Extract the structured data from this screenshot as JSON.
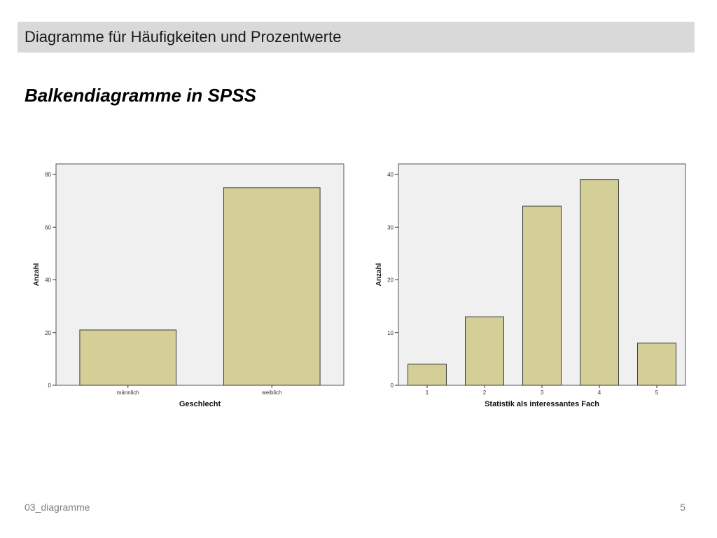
{
  "header": {
    "title": "Diagramme für Häufigkeiten und Prozentwerte"
  },
  "slide": {
    "subtitle": "Balkendiagramme in SPSS"
  },
  "footer": {
    "source": "03_diagramme",
    "page_number": "5"
  },
  "colors": {
    "bar_fill": "#d4ce97",
    "bar_stroke": "#3a3a3a",
    "plot_bg": "#f0f0f0",
    "header_bg": "#d9d9d9"
  },
  "chart_data": [
    {
      "type": "bar",
      "categories": [
        "männlich",
        "weiblich"
      ],
      "values": [
        21,
        75
      ],
      "title": "",
      "xlabel": "Geschlecht",
      "ylabel": "Anzahl",
      "ylim": [
        0,
        84
      ],
      "yticks": [
        0,
        20,
        40,
        60,
        80
      ],
      "grid": false
    },
    {
      "type": "bar",
      "categories": [
        "1",
        "2",
        "3",
        "4",
        "5"
      ],
      "values": [
        4,
        13,
        34,
        39,
        8
      ],
      "title": "",
      "xlabel": "Statistik als interessantes Fach",
      "ylabel": "Anzahl",
      "ylim": [
        0,
        42
      ],
      "yticks": [
        0,
        10,
        20,
        30,
        40
      ],
      "grid": false
    }
  ]
}
